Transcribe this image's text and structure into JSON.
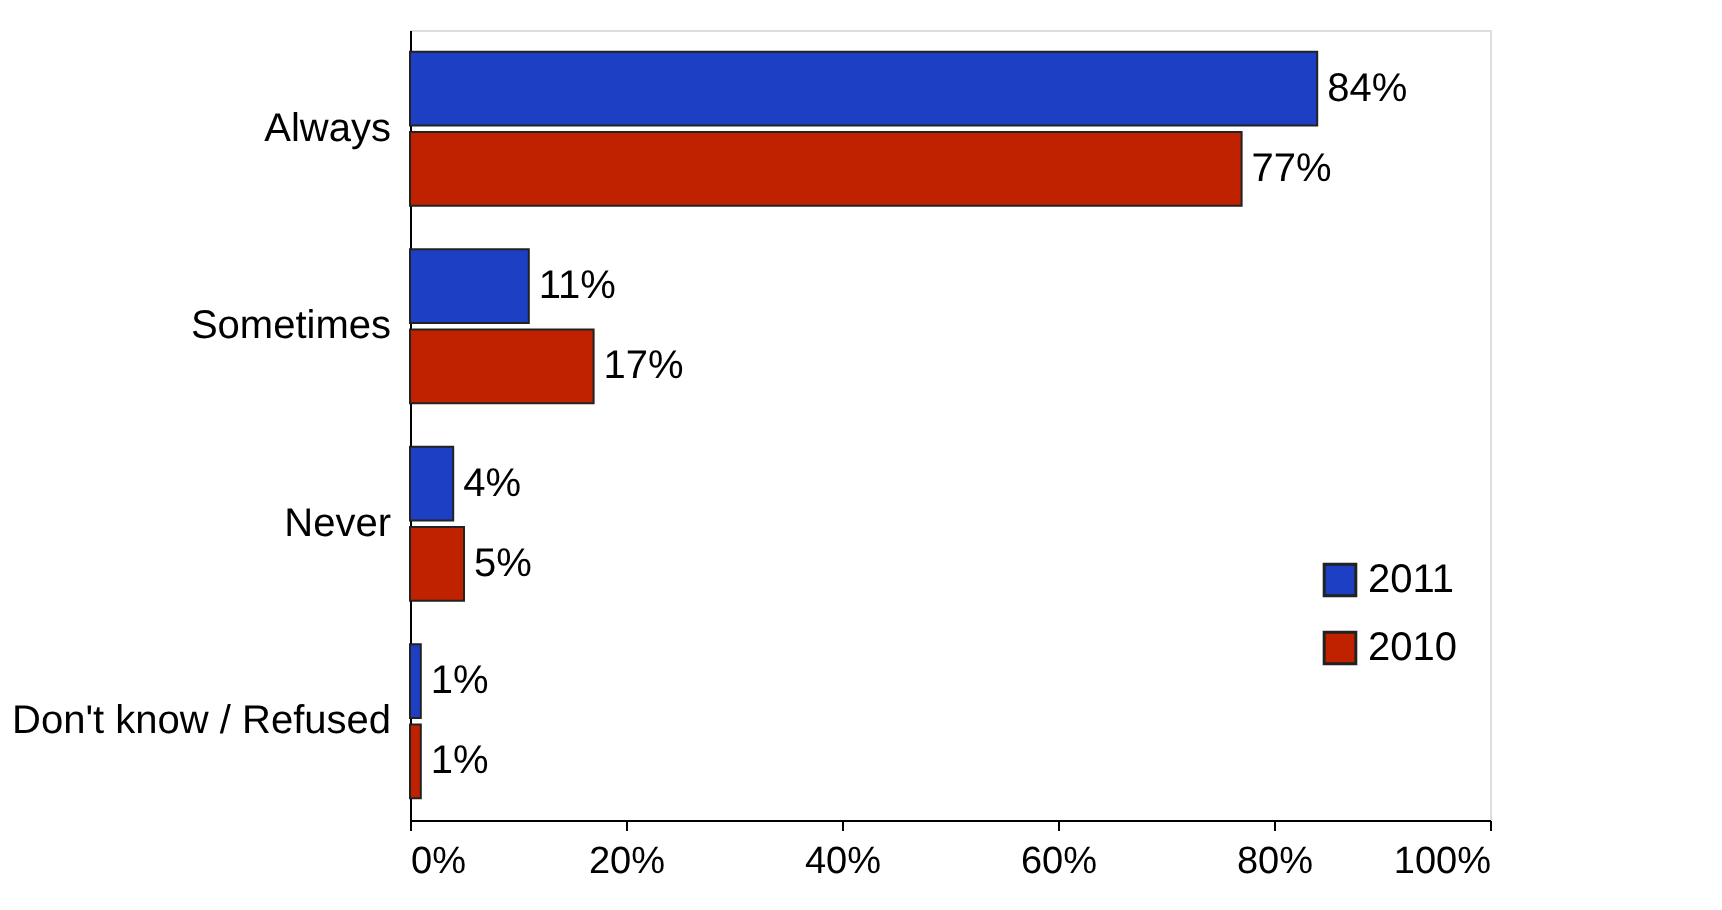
{
  "chart_data": {
    "type": "bar",
    "orientation": "horizontal",
    "categories": [
      "Always",
      "Sometimes",
      "Never",
      "Don't know / Refused"
    ],
    "series": [
      {
        "name": "2011",
        "color": "#1c3fc4",
        "values": [
          84,
          11,
          4,
          1
        ],
        "value_labels": [
          "84%",
          "11%",
          "4%",
          "1%"
        ]
      },
      {
        "name": "2010",
        "color": "#c02200",
        "values": [
          77,
          17,
          5,
          1
        ],
        "value_labels": [
          "77%",
          "17%",
          "5%",
          "1%"
        ]
      }
    ],
    "xlim": [
      0,
      100
    ],
    "xticks": [
      {
        "value": 0,
        "label": "0%"
      },
      {
        "value": 20,
        "label": "20%"
      },
      {
        "value": 40,
        "label": "40%"
      },
      {
        "value": 60,
        "label": "60%"
      },
      {
        "value": 80,
        "label": "80%"
      },
      {
        "value": 100,
        "label": "100%"
      }
    ],
    "legend": "bottom right",
    "grid": false
  }
}
